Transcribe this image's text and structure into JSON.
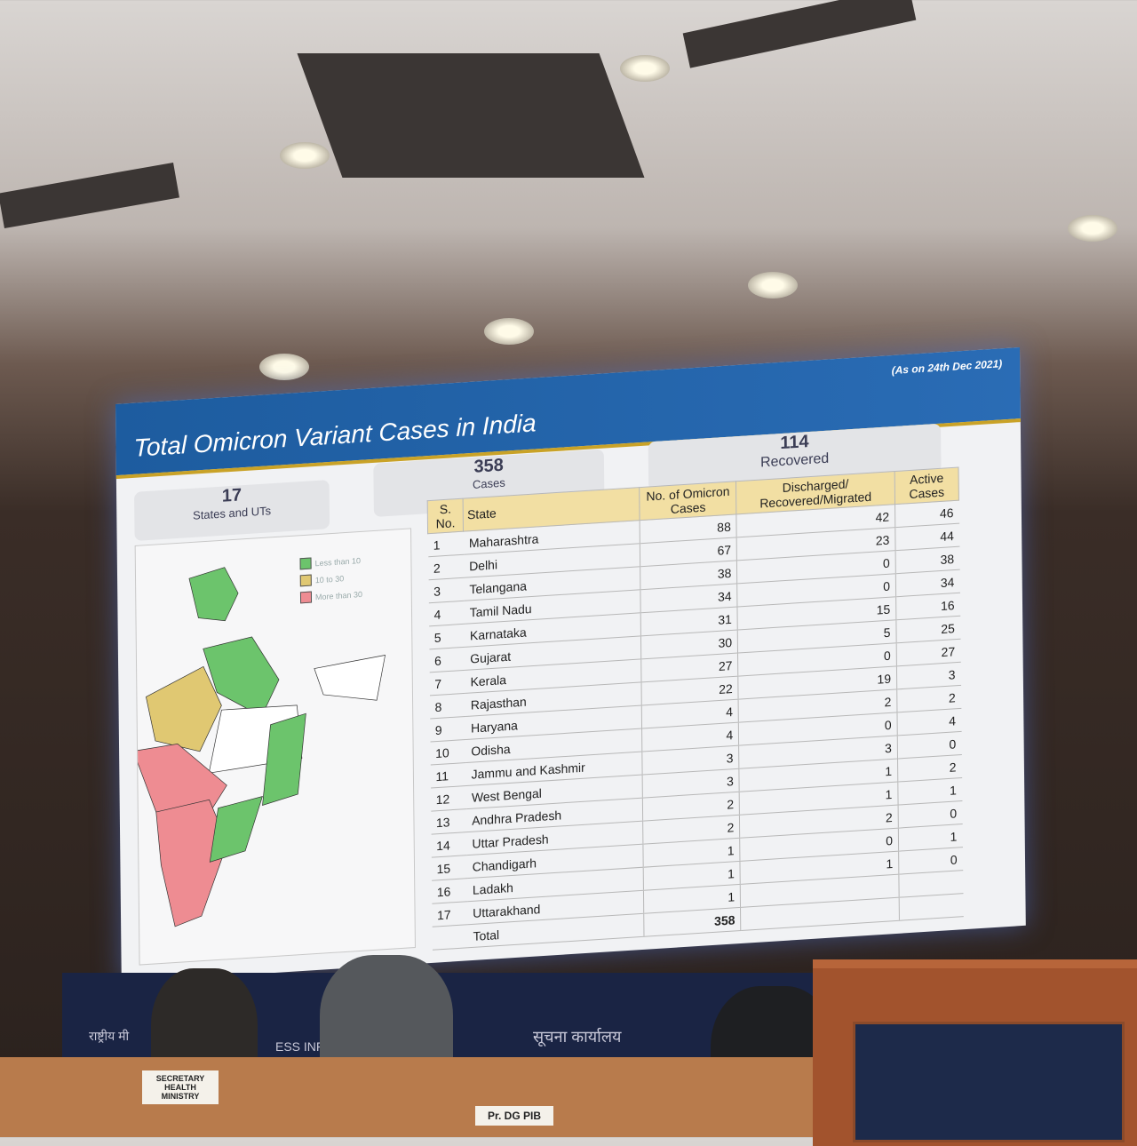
{
  "slide": {
    "title": "Total Omicron Variant Cases in India",
    "as_on": "(As on 24th Dec 2021)",
    "stats": [
      {
        "value": "17",
        "label": "States and UTs"
      },
      {
        "value": "358",
        "label": "Cases"
      },
      {
        "value": "114",
        "label": "Recovered"
      }
    ],
    "legend": [
      {
        "label": "Less than 10",
        "color": "#6cc46c"
      },
      {
        "label": "10 to 30",
        "color": "#e0c872"
      },
      {
        "label": "More than 30",
        "color": "#ee8c92"
      }
    ],
    "table": {
      "headers": [
        "S. No.",
        "State",
        "No. of Omicron Cases",
        "Discharged/ Recovered/Migrated",
        "Active Cases"
      ],
      "rows": [
        [
          "1",
          "Maharashtra",
          "88",
          "42",
          "46"
        ],
        [
          "2",
          "Delhi",
          "67",
          "23",
          "44"
        ],
        [
          "3",
          "Telangana",
          "38",
          "0",
          "38"
        ],
        [
          "4",
          "Tamil Nadu",
          "34",
          "0",
          "34"
        ],
        [
          "5",
          "Karnataka",
          "31",
          "15",
          "16"
        ],
        [
          "6",
          "Gujarat",
          "30",
          "5",
          "25"
        ],
        [
          "7",
          "Kerala",
          "27",
          "0",
          "27"
        ],
        [
          "8",
          "Rajasthan",
          "22",
          "19",
          "3"
        ],
        [
          "9",
          "Haryana",
          "4",
          "2",
          "2"
        ],
        [
          "10",
          "Odisha",
          "4",
          "0",
          "4"
        ],
        [
          "11",
          "Jammu and Kashmir",
          "3",
          "3",
          "0"
        ],
        [
          "12",
          "West Bengal",
          "3",
          "1",
          "2"
        ],
        [
          "13",
          "Andhra Pradesh",
          "2",
          "1",
          "1"
        ],
        [
          "14",
          "Uttar Pradesh",
          "2",
          "2",
          "0"
        ],
        [
          "15",
          "Chandigarh",
          "1",
          "0",
          "1"
        ],
        [
          "16",
          "Ladakh",
          "1",
          "1",
          "0"
        ],
        [
          "17",
          "Uttarakhand",
          "1",
          "",
          ""
        ]
      ],
      "total_label": "Total",
      "total_cases": "358"
    }
  },
  "room": {
    "backdrop_left": "राष्ट्रीय मी",
    "backdrop_mid": "ESS INFO",
    "backdrop_right": "सूचना कार्यालय",
    "nameplate_1": "SECRETARY HEALTH MINISTRY",
    "nameplate_2": "Pr. DG PIB"
  }
}
